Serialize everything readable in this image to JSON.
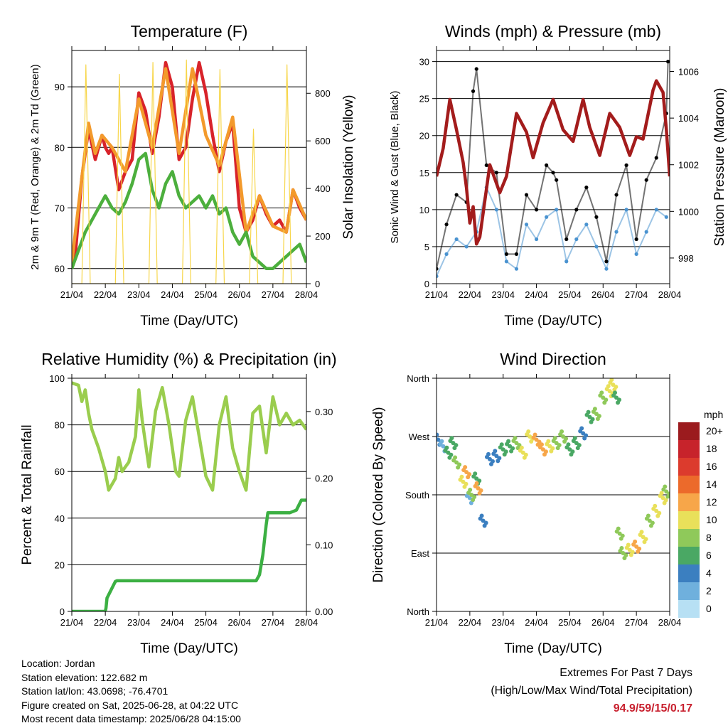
{
  "footer": {
    "location": "Location: Jordan",
    "elevation": "Station elevation: 122.682 m",
    "latlon": "Station lat/lon: 43.0698; -76.4701",
    "created": "Figure created on Sat, 2025-06-28, at 04:22 UTC",
    "recent": "Most recent data timestamp: 2025/06/28 04:15:00"
  },
  "extremes": {
    "title": "Extremes For Past 7 Days",
    "subtitle": "(High/Low/Max Wind/Total Precipitation)",
    "values": "94.9/59/15/0.17"
  },
  "colors": {
    "temp2m": "#d8232a",
    "temp9m": "#f39a2c",
    "dewpoint": "#4caf3d",
    "solar": "#f7d64a",
    "sonic": "#4a93d0",
    "gust": "#000000",
    "pressure": "#a31c1c",
    "rh": "#9acd4e",
    "precip": "#3cb043"
  },
  "chart_data": [
    {
      "type": "line",
      "title": "Temperature (F)",
      "xlabel": "Time (Day/UTC)",
      "ylabel": "2m & 9m T (Red, Orange) & 2m Td (Green)",
      "y2label": "Solar Insolation (Yellow)",
      "ylim": [
        57.5,
        96
      ],
      "y2lim": [
        0,
        980
      ],
      "yticks": [
        60,
        70,
        80,
        90
      ],
      "y2ticks": [
        0,
        200,
        400,
        600,
        800
      ],
      "gridlines": [
        60,
        70,
        80,
        90
      ],
      "categories": [
        "21/04",
        "22/04",
        "23/04",
        "24/04",
        "25/04",
        "26/04",
        "27/04",
        "28/04"
      ],
      "series": [
        {
          "name": "2m T",
          "color": "#d8232a",
          "x": [
            0,
            0.1,
            0.3,
            0.5,
            0.7,
            0.9,
            1.0,
            1.1,
            1.2,
            1.4,
            1.6,
            1.8,
            2.0,
            2.2,
            2.4,
            2.6,
            2.8,
            3.0,
            3.2,
            3.4,
            3.6,
            3.8,
            4.0,
            4.2,
            4.4,
            4.6,
            4.8,
            5.0,
            5.2,
            5.4,
            5.6,
            5.8,
            6.0,
            6.2,
            6.4,
            6.6,
            6.8,
            7.0
          ],
          "values": [
            61,
            62,
            75,
            83,
            78,
            82,
            80,
            79,
            80,
            73,
            76,
            78,
            89,
            86,
            79,
            85,
            94,
            90,
            78,
            80,
            88,
            94,
            89,
            82,
            76,
            81,
            84,
            70,
            66,
            68,
            72,
            69,
            67,
            68,
            66,
            73,
            70,
            68
          ]
        },
        {
          "name": "9m T",
          "color": "#f39a2c",
          "x": [
            0,
            0.3,
            0.5,
            0.7,
            0.9,
            1.2,
            1.6,
            2.0,
            2.4,
            2.8,
            3.2,
            3.6,
            4.0,
            4.4,
            4.8,
            5.2,
            5.6,
            6.0,
            6.4,
            6.6,
            7.0
          ],
          "values": [
            61,
            75,
            84,
            79,
            82,
            80,
            76,
            88,
            80,
            93,
            79,
            93,
            82,
            77,
            85,
            66,
            72,
            67,
            66,
            73,
            68
          ]
        },
        {
          "name": "2m Td",
          "color": "#4caf3d",
          "x": [
            0,
            0.2,
            0.4,
            0.6,
            0.8,
            1.0,
            1.2,
            1.4,
            1.6,
            1.8,
            2.0,
            2.2,
            2.4,
            2.6,
            2.8,
            3.0,
            3.2,
            3.4,
            3.6,
            3.8,
            4.0,
            4.2,
            4.4,
            4.6,
            4.8,
            5.0,
            5.2,
            5.4,
            5.6,
            5.8,
            6.0,
            6.2,
            6.4,
            6.6,
            6.8,
            7.0
          ],
          "values": [
            60,
            63,
            66,
            68,
            70,
            72,
            70,
            69,
            71,
            74,
            78,
            79,
            73,
            70,
            74,
            76,
            72,
            70,
            71,
            72,
            70,
            72,
            69,
            70,
            66,
            64,
            66,
            62,
            61,
            60,
            60,
            61,
            62,
            63,
            64,
            61
          ]
        },
        {
          "name": "Solar Insolation",
          "axis": "y2",
          "color": "#f7d64a",
          "x": [
            0.0,
            0.3,
            0.42,
            0.55,
            0.85,
            1.3,
            1.42,
            1.55,
            1.85,
            2.3,
            2.42,
            2.55,
            2.85,
            3.3,
            3.42,
            3.55,
            3.85,
            4.3,
            4.42,
            4.55,
            4.85,
            5.3,
            5.42,
            5.55,
            5.85,
            6.3,
            6.42,
            6.55,
            6.85,
            7.0
          ],
          "values": [
            0,
            0,
            920,
            0,
            0,
            0,
            880,
            0,
            0,
            0,
            930,
            0,
            0,
            0,
            940,
            0,
            0,
            0,
            900,
            0,
            0,
            0,
            650,
            0,
            0,
            0,
            920,
            0,
            0,
            0
          ]
        }
      ]
    },
    {
      "type": "scatter",
      "title": "Winds (mph) & Pressure (mb)",
      "xlabel": "Time (Day/UTC)",
      "ylabel": "Sonic Wind & Gust (Blue, Black)",
      "y2label": "Station Pressure (Maroon)",
      "ylim": [
        0,
        31.5
      ],
      "y2lim": [
        996.9,
        1006.9
      ],
      "yticks": [
        0,
        5,
        10,
        15,
        20,
        25,
        30
      ],
      "y2ticks": [
        998,
        1000,
        1002,
        1004,
        1006
      ],
      "gridlines": [
        5,
        10,
        15,
        20,
        25,
        30
      ],
      "categories": [
        "21/04",
        "22/04",
        "23/04",
        "24/04",
        "25/04",
        "26/04",
        "27/04",
        "28/04"
      ],
      "series": [
        {
          "name": "Sonic Wind",
          "color": "#4a93d0",
          "x": [
            0,
            0.3,
            0.6,
            0.9,
            1.2,
            1.5,
            1.8,
            2.1,
            2.4,
            2.7,
            3.0,
            3.3,
            3.6,
            3.9,
            4.2,
            4.5,
            4.8,
            5.1,
            5.4,
            5.7,
            6.0,
            6.3,
            6.6,
            6.9
          ],
          "values": [
            1,
            4,
            6,
            5,
            7,
            13,
            10,
            3,
            2,
            8,
            6,
            9,
            10,
            3,
            6,
            8,
            5,
            2,
            7,
            10,
            4,
            7,
            10,
            9
          ]
        },
        {
          "name": "Gust",
          "color": "#000000",
          "x": [
            0,
            0.3,
            0.6,
            0.9,
            1.1,
            1.2,
            1.5,
            1.8,
            2.1,
            2.4,
            2.7,
            3.0,
            3.3,
            3.5,
            3.6,
            3.9,
            4.2,
            4.5,
            4.8,
            5.1,
            5.4,
            5.7,
            6.0,
            6.3,
            6.6,
            6.9,
            6.95
          ],
          "values": [
            2,
            8,
            12,
            11,
            26,
            29,
            16,
            15,
            4,
            4,
            12,
            10,
            16,
            15,
            14,
            6,
            10,
            13,
            9,
            3,
            12,
            16,
            6,
            14,
            17,
            23,
            30
          ]
        },
        {
          "name": "Station Pressure",
          "axis": "y2",
          "color": "#a31c1c",
          "x": [
            0,
            0.2,
            0.4,
            0.6,
            0.8,
            0.9,
            1.0,
            1.1,
            1.2,
            1.3,
            1.6,
            1.9,
            2.1,
            2.4,
            2.7,
            2.9,
            3.2,
            3.5,
            3.8,
            4.1,
            4.4,
            4.6,
            4.9,
            5.2,
            5.5,
            5.8,
            6.0,
            6.2,
            6.5,
            6.6,
            6.8,
            6.9,
            7.0
          ],
          "values": [
            1001.5,
            1002.7,
            1004.8,
            1003.5,
            1002.1,
            1001.0,
            999.5,
            1000.2,
            998.6,
            998.9,
            1002.0,
            1000.8,
            1001.5,
            1004.2,
            1003.4,
            1002.3,
            1003.8,
            1004.8,
            1003.5,
            1003.0,
            1004.8,
            1003.6,
            1002.4,
            1004.2,
            1003.6,
            1002.4,
            1003.2,
            1003.1,
            1005.2,
            1005.6,
            1005.1,
            1003.5,
            1001.5
          ]
        }
      ]
    },
    {
      "type": "line",
      "title": "Relative Humidity (%) & Precipitation (in)",
      "xlabel": "Time (Day/UTC)",
      "ylabel": "Percent & Total Rainfall",
      "ylim": [
        0,
        100
      ],
      "y2lim": [
        0,
        0.35
      ],
      "yticks": [
        0,
        20,
        40,
        60,
        80,
        100
      ],
      "y2ticks": [
        0.0,
        0.1,
        0.2,
        0.3
      ],
      "y2ticklabels": [
        "0.00",
        "0.10",
        "0.20",
        "0.30"
      ],
      "gridlines": [
        20,
        40,
        60,
        80
      ],
      "categories": [
        "21/04",
        "22/04",
        "23/04",
        "24/04",
        "25/04",
        "26/04",
        "27/04",
        "28/04"
      ],
      "series": [
        {
          "name": "RH",
          "color": "#9acd4e",
          "x": [
            0,
            0.2,
            0.3,
            0.4,
            0.5,
            0.6,
            0.8,
            1.0,
            1.1,
            1.3,
            1.4,
            1.5,
            1.7,
            1.9,
            2.0,
            2.1,
            2.3,
            2.5,
            2.7,
            2.9,
            3.1,
            3.2,
            3.4,
            3.6,
            3.8,
            4.0,
            4.2,
            4.4,
            4.6,
            4.8,
            5.0,
            5.2,
            5.4,
            5.6,
            5.8,
            6.0,
            6.2,
            6.4,
            6.6,
            6.8,
            7.0
          ],
          "values": [
            98,
            97,
            90,
            95,
            85,
            78,
            70,
            60,
            52,
            57,
            66,
            60,
            64,
            75,
            95,
            82,
            62,
            86,
            96,
            80,
            60,
            58,
            82,
            92,
            75,
            58,
            52,
            80,
            92,
            70,
            60,
            52,
            85,
            88,
            68,
            92,
            80,
            85,
            80,
            82,
            78
          ]
        },
        {
          "name": "Total Precipitation",
          "axis": "y2",
          "color": "#3cb043",
          "x": [
            0,
            1.0,
            1.02,
            1.05,
            1.15,
            1.25,
            1.3,
            1.35,
            1.5,
            2.0,
            3.0,
            4.0,
            5.0,
            5.5,
            5.6,
            5.7,
            5.8,
            5.85,
            6.0,
            6.5,
            6.7,
            6.8,
            6.85,
            7.0
          ],
          "values": [
            0.0,
            0.0,
            0.005,
            0.02,
            0.03,
            0.04,
            0.045,
            0.046,
            0.046,
            0.046,
            0.046,
            0.046,
            0.046,
            0.046,
            0.055,
            0.085,
            0.13,
            0.148,
            0.148,
            0.148,
            0.152,
            0.162,
            0.167,
            0.167
          ]
        }
      ]
    },
    {
      "type": "scatter",
      "title": "Wind Direction",
      "xlabel": "Time (Day/UTC)",
      "ylabel": "Direction (Colored By Speed)",
      "ylim": [
        0,
        360
      ],
      "yticks": [
        0,
        90,
        180,
        270,
        360
      ],
      "yticklabels": [
        "North",
        "East",
        "South",
        "West",
        "North"
      ],
      "gridlines": [
        90,
        180,
        270
      ],
      "categories": [
        "21/04",
        "22/04",
        "23/04",
        "24/04",
        "25/04",
        "26/04",
        "27/04",
        "28/04"
      ],
      "colorbar": {
        "title": "mph",
        "labels": [
          "20+",
          "18",
          "16",
          "14",
          "12",
          "10",
          "8",
          "6",
          "4",
          "2",
          "0"
        ],
        "colors": [
          "#9b1b1e",
          "#c7232b",
          "#dc3b2d",
          "#ec6a2b",
          "#f7a649",
          "#e9e05a",
          "#8fc95a",
          "#4aa864",
          "#3b7fc0",
          "#6fb0dd",
          "#b7e0f4"
        ]
      },
      "series": [
        {
          "name": "Direction",
          "x": [
            0.05,
            0.2,
            0.35,
            0.5,
            0.6,
            0.8,
            0.9,
            1.0,
            1.05,
            1.2,
            1.25,
            1.4,
            1.6,
            1.8,
            2.0,
            2.2,
            2.4,
            2.6,
            2.8,
            3.0,
            3.2,
            3.4,
            3.6,
            3.8,
            4.0,
            4.2,
            4.4,
            4.6,
            4.8,
            5.0,
            5.2,
            5.3,
            5.4,
            5.5,
            5.6,
            5.8,
            6.0,
            6.2,
            6.4,
            6.6,
            6.8,
            6.9
          ],
          "values": [
            265,
            255,
            245,
            260,
            230,
            200,
            215,
            175,
            180,
            205,
            190,
            140,
            235,
            240,
            250,
            255,
            260,
            245,
            270,
            265,
            250,
            255,
            260,
            270,
            250,
            260,
            275,
            300,
            305,
            330,
            340,
            350,
            330,
            120,
            90,
            95,
            100,
            115,
            140,
            155,
            175,
            185
          ],
          "speeds": [
            3,
            2,
            5,
            6,
            7,
            10,
            12,
            2,
            8,
            6,
            12,
            4,
            3,
            4,
            5,
            6,
            7,
            9,
            10,
            11,
            12,
            9,
            8,
            7,
            6,
            5,
            4,
            6,
            7,
            8,
            9,
            10,
            5,
            7,
            8,
            10,
            12,
            9,
            8,
            9,
            10,
            7
          ]
        }
      ]
    }
  ]
}
